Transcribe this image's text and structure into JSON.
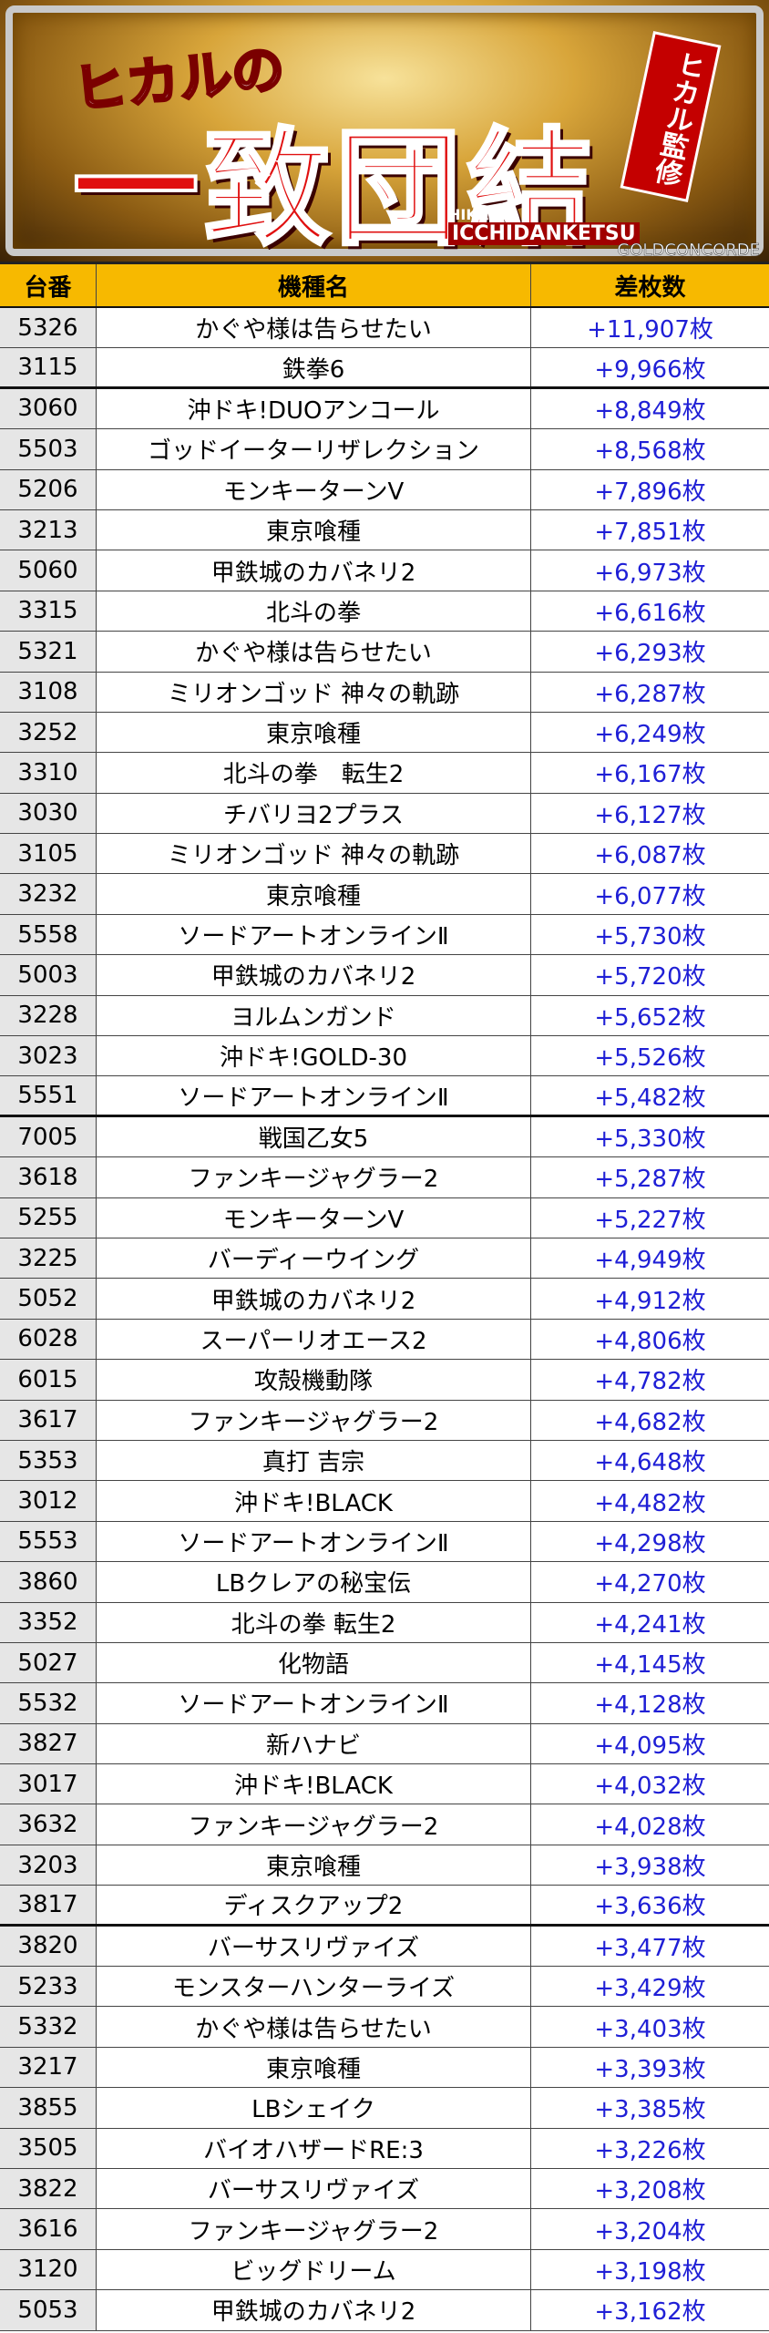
{
  "banner": {
    "title_small": "ヒカルの",
    "title_large": "一致団結",
    "badge": "ヒカル監修",
    "romaji_1": "HIKARU",
    "romaji_2": "ICCHIDANKETSU",
    "credit": "GOLDCONCORDE"
  },
  "table": {
    "header": [
      "台番",
      "機種名",
      "差枚数"
    ],
    "rows": [
      [
        "5326",
        "かぐや様は告らせたい",
        "+11,907枚"
      ],
      [
        "3115",
        "鉄拳6",
        "+9,966枚"
      ],
      [
        "3060",
        "沖ドキ!DUOアンコール",
        "+8,849枚"
      ],
      [
        "5503",
        "ゴッドイーターリザレクション",
        "+8,568枚"
      ],
      [
        "5206",
        "モンキーターンV",
        "+7,896枚"
      ],
      [
        "3213",
        "東京喰種",
        "+7,851枚"
      ],
      [
        "5060",
        "甲鉄城のカバネリ2",
        "+6,973枚"
      ],
      [
        "3315",
        "北斗の拳",
        "+6,616枚"
      ],
      [
        "5321",
        "かぐや様は告らせたい",
        "+6,293枚"
      ],
      [
        "3108",
        "ミリオンゴッド 神々の軌跡",
        "+6,287枚"
      ],
      [
        "3252",
        "東京喰種",
        "+6,249枚"
      ],
      [
        "3310",
        "北斗の拳　転生2",
        "+6,167枚"
      ],
      [
        "3030",
        "チバリヨ2プラス",
        "+6,127枚"
      ],
      [
        "3105",
        "ミリオンゴッド 神々の軌跡",
        "+6,087枚"
      ],
      [
        "3232",
        "東京喰種",
        "+6,077枚"
      ],
      [
        "5558",
        "ソードアートオンラインⅡ",
        "+5,730枚"
      ],
      [
        "5003",
        "甲鉄城のカバネリ2",
        "+5,720枚"
      ],
      [
        "3228",
        "ヨルムンガンド",
        "+5,652枚"
      ],
      [
        "3023",
        "沖ドキ!GOLD-30",
        "+5,526枚"
      ],
      [
        "5551",
        "ソードアートオンラインⅡ",
        "+5,482枚"
      ],
      [
        "7005",
        "戦国乙女5",
        "+5,330枚"
      ],
      [
        "3618",
        "ファンキージャグラー2",
        "+5,287枚"
      ],
      [
        "5255",
        "モンキーターンV",
        "+5,227枚"
      ],
      [
        "3225",
        "バーディーウイング",
        "+4,949枚"
      ],
      [
        "5052",
        "甲鉄城のカバネリ2",
        "+4,912枚"
      ],
      [
        "6028",
        "スーパーリオエース2",
        "+4,806枚"
      ],
      [
        "6015",
        "攻殻機動隊",
        "+4,782枚"
      ],
      [
        "3617",
        "ファンキージャグラー2",
        "+4,682枚"
      ],
      [
        "5353",
        "真打 吉宗",
        "+4,648枚"
      ],
      [
        "3012",
        "沖ドキ!BLACK",
        "+4,482枚"
      ],
      [
        "5553",
        "ソードアートオンラインⅡ",
        "+4,298枚"
      ],
      [
        "3860",
        "LBクレアの秘宝伝",
        "+4,270枚"
      ],
      [
        "3352",
        "北斗の拳 転生2",
        "+4,241枚"
      ],
      [
        "5027",
        "化物語",
        "+4,145枚"
      ],
      [
        "5532",
        "ソードアートオンラインⅡ",
        "+4,128枚"
      ],
      [
        "3827",
        "新ハナビ",
        "+4,095枚"
      ],
      [
        "3017",
        "沖ドキ!BLACK",
        "+4,032枚"
      ],
      [
        "3632",
        "ファンキージャグラー2",
        "+4,028枚"
      ],
      [
        "3203",
        "東京喰種",
        "+3,938枚"
      ],
      [
        "3817",
        "ディスクアップ2",
        "+3,636枚"
      ],
      [
        "3820",
        "バーサスリヴァイズ",
        "+3,477枚"
      ],
      [
        "5233",
        "モンスターハンターライズ",
        "+3,429枚"
      ],
      [
        "5332",
        "かぐや様は告らせたい",
        "+3,403枚"
      ],
      [
        "3217",
        "東京喰種",
        "+3,393枚"
      ],
      [
        "3855",
        "LBシェイク",
        "+3,385枚"
      ],
      [
        "3505",
        "バイオハザードRE:3",
        "+3,226枚"
      ],
      [
        "3822",
        "バーサスリヴァイズ",
        "+3,208枚"
      ],
      [
        "3616",
        "ファンキージャグラー2",
        "+3,204枚"
      ],
      [
        "3120",
        "ビッグドリーム",
        "+3,198枚"
      ],
      [
        "5053",
        "甲鉄城のカバネリ2",
        "+3,162枚"
      ]
    ]
  }
}
